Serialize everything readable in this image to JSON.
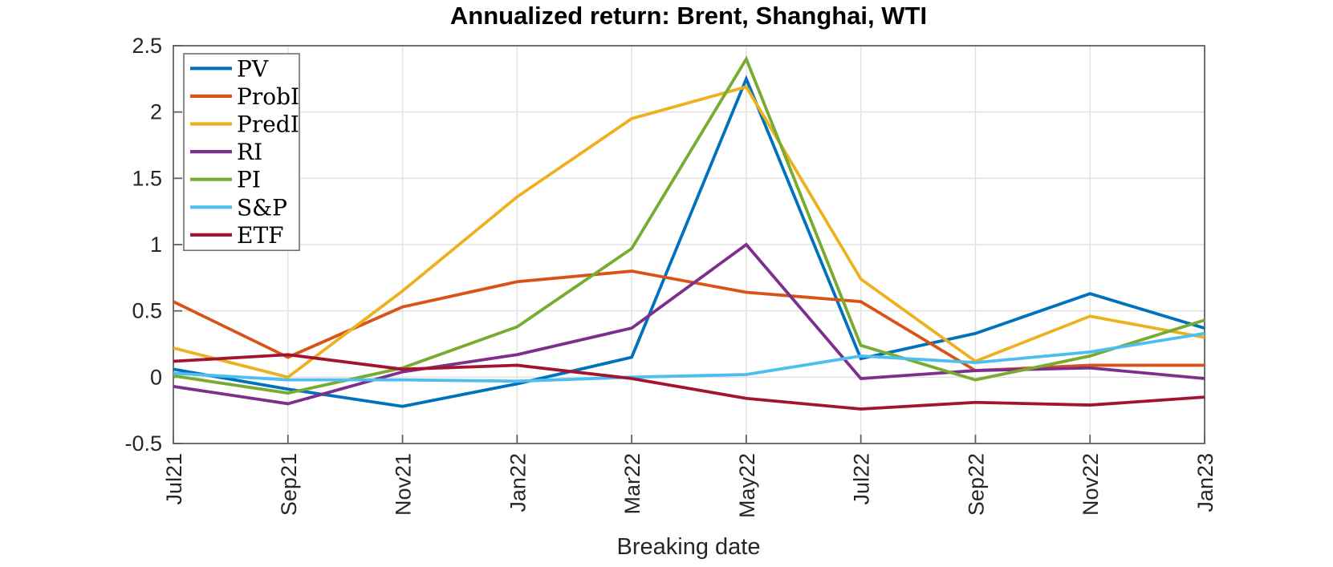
{
  "title": "Annualized return: Brent, Shanghai, WTI",
  "colors": {
    "axis": "#606060",
    "grid": "#e2e2e2",
    "tick_text": "#262626",
    "background": "#ffffff",
    "legend_border": "#666666"
  },
  "chart_data": {
    "type": "line",
    "title": "Annualized return: Brent, Shanghai, WTI",
    "xlabel": "Breaking date",
    "ylabel": "",
    "x": [
      "Jul21",
      "Sep21",
      "Nov21",
      "Jan22",
      "Mar22",
      "May22",
      "Jul22",
      "Sep22",
      "Nov22",
      "Jan23"
    ],
    "ylim": [
      -0.5,
      2.5
    ],
    "yticks": [
      -0.5,
      0,
      0.5,
      1,
      1.5,
      2,
      2.5
    ],
    "ytick_labels": [
      "-0.5",
      "0",
      "0.5",
      "1",
      "1.5",
      "2",
      "2.5"
    ],
    "grid": true,
    "legend_position": "top-left",
    "x_tick_rotation_deg": 90,
    "series": [
      {
        "name": "PV",
        "color": "#0072BD",
        "values": [
          0.06,
          -0.09,
          -0.22,
          -0.05,
          0.15,
          2.25,
          0.14,
          0.33,
          0.63,
          0.37
        ]
      },
      {
        "name": "ProbI",
        "color": "#D95319",
        "values": [
          0.57,
          0.15,
          0.53,
          0.72,
          0.8,
          0.64,
          0.57,
          0.05,
          0.09,
          0.09
        ]
      },
      {
        "name": "PredI",
        "color": "#EDB120",
        "values": [
          0.22,
          0.0,
          0.65,
          1.36,
          1.95,
          2.19,
          0.74,
          0.12,
          0.46,
          0.3
        ]
      },
      {
        "name": "RI",
        "color": "#7E2F8E",
        "values": [
          -0.07,
          -0.2,
          0.04,
          0.17,
          0.37,
          1.0,
          -0.01,
          0.05,
          0.07,
          -0.01
        ]
      },
      {
        "name": "PI",
        "color": "#77AC30",
        "values": [
          0.01,
          -0.12,
          0.07,
          0.38,
          0.97,
          2.4,
          0.24,
          -0.02,
          0.16,
          0.43
        ]
      },
      {
        "name": "S&P",
        "color": "#4DBEEE",
        "values": [
          0.03,
          -0.02,
          -0.02,
          -0.03,
          0.0,
          0.02,
          0.16,
          0.11,
          0.19,
          0.33
        ]
      },
      {
        "name": "ETF",
        "color": "#A2142F",
        "values": [
          0.12,
          0.17,
          0.06,
          0.09,
          -0.01,
          -0.16,
          -0.24,
          -0.19,
          -0.21,
          -0.15
        ]
      }
    ]
  }
}
